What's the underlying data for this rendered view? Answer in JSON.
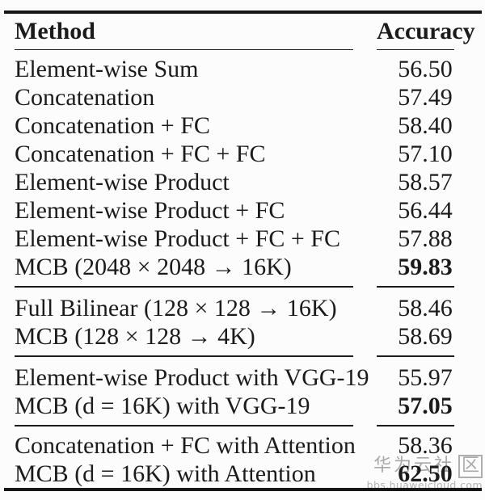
{
  "table": {
    "headers": {
      "method": "Method",
      "accuracy": "Accuracy"
    },
    "groups": [
      {
        "rows": [
          {
            "method": "Element-wise Sum",
            "accuracy": "56.50",
            "bold": false
          },
          {
            "method": "Concatenation",
            "accuracy": "57.49",
            "bold": false
          },
          {
            "method": "Concatenation + FC",
            "accuracy": "58.40",
            "bold": false
          },
          {
            "method": "Concatenation + FC + FC",
            "accuracy": "57.10",
            "bold": false
          },
          {
            "method": "Element-wise Product",
            "accuracy": "58.57",
            "bold": false
          },
          {
            "method": "Element-wise Product + FC",
            "accuracy": "56.44",
            "bold": false
          },
          {
            "method": "Element-wise Product + FC + FC",
            "accuracy": "57.88",
            "bold": false
          },
          {
            "method": "MCB (2048 × 2048 → 16K)",
            "accuracy": "59.83",
            "bold": true
          }
        ]
      },
      {
        "rows": [
          {
            "method": "Full Bilinear (128 × 128 → 16K)",
            "accuracy": "58.46",
            "bold": false
          },
          {
            "method": "MCB (128 × 128 → 4K)",
            "accuracy": "58.69",
            "bold": false
          }
        ]
      },
      {
        "rows": [
          {
            "method": "Element-wise Product with VGG-19",
            "accuracy": "55.97",
            "bold": false
          },
          {
            "method": "MCB (d = 16K) with VGG-19",
            "accuracy": "57.05",
            "bold": true
          }
        ]
      },
      {
        "rows": [
          {
            "method": "Concatenation + FC with Attention",
            "accuracy": "58.36",
            "bold": false
          },
          {
            "method": "MCB (d = 16K) with Attention",
            "accuracy": "62.50",
            "bold": true
          }
        ]
      }
    ]
  },
  "watermark": {
    "brand_text": "华为云社",
    "boxed_char": "区",
    "url": "bbs.huaweicloud.com",
    "color": "#a9a9a9"
  },
  "colors": {
    "background": "#fcfcfc",
    "ink": "#1b1b1b"
  }
}
